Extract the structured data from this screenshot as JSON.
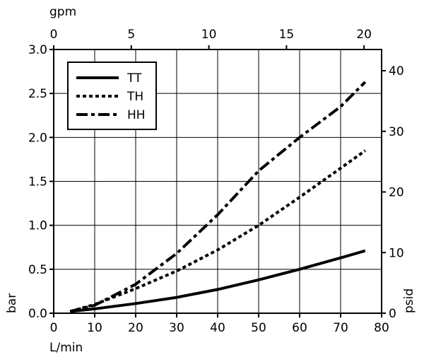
{
  "chart_data": {
    "type": "line",
    "title": "",
    "xlabel": "L/min",
    "ylabel": "bar",
    "x2label": "gpm",
    "y2label": "psid",
    "xlim": [
      0,
      80
    ],
    "ylim": [
      0,
      3.0
    ],
    "x2lim": [
      0,
      21.13
    ],
    "y2lim": [
      0,
      43.5
    ],
    "xticks": [
      0,
      10,
      20,
      30,
      40,
      50,
      60,
      70,
      80
    ],
    "xtick_labels": [
      "0",
      "10",
      "20",
      "30",
      "40",
      "50",
      "60",
      "70",
      "80"
    ],
    "yticks": [
      0,
      0.5,
      1.0,
      1.5,
      2.0,
      2.5,
      3.0
    ],
    "ytick_labels": [
      "0.0",
      "0.5",
      "1.0",
      "1.5",
      "2.0",
      "2.5",
      "3.0"
    ],
    "x2ticks": [
      0,
      5,
      10,
      15,
      20
    ],
    "x2tick_labels": [
      "0",
      "5",
      "10",
      "15",
      "20"
    ],
    "y2ticks": [
      0,
      10,
      20,
      30,
      40
    ],
    "y2tick_labels": [
      "0",
      "10",
      "20",
      "30",
      "40"
    ],
    "grid": true,
    "legend_position": "top-left",
    "series": [
      {
        "name": "TT",
        "dash": "solid",
        "x": [
          4,
          10,
          20,
          30,
          40,
          50,
          60,
          70,
          76
        ],
        "y": [
          0.02,
          0.05,
          0.11,
          0.18,
          0.27,
          0.38,
          0.5,
          0.63,
          0.71
        ]
      },
      {
        "name": "TH",
        "dash": "dotted",
        "x": [
          4,
          10,
          20,
          30,
          40,
          50,
          60,
          70,
          76
        ],
        "y": [
          0.02,
          0.1,
          0.28,
          0.48,
          0.72,
          1.0,
          1.32,
          1.65,
          1.85
        ]
      },
      {
        "name": "HH",
        "dash": "dashdot",
        "x": [
          4,
          10,
          20,
          30,
          40,
          50,
          60,
          70,
          76
        ],
        "y": [
          0.02,
          0.09,
          0.33,
          0.68,
          1.12,
          1.62,
          2.0,
          2.35,
          2.63
        ]
      }
    ]
  }
}
